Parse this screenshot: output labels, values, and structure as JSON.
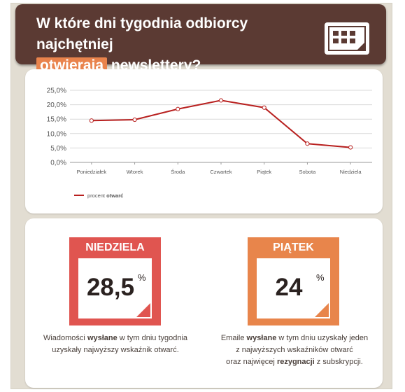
{
  "header": {
    "title_line1": "W które dni tygodnia odbiorcy najchętniej",
    "title_highlight": "otwierają",
    "title_rest": "newslettery?",
    "icon": "calendar-icon"
  },
  "chart_data": {
    "type": "line",
    "categories": [
      "Poniedziałek",
      "Wtorek",
      "Środa",
      "Czwartek",
      "Piątek",
      "Sobota",
      "Niedziela"
    ],
    "series": [
      {
        "name": "procent otwarć",
        "values": [
          14.5,
          14.8,
          18.5,
          21.5,
          19.0,
          6.5,
          5.2
        ],
        "color": "#b8201f"
      }
    ],
    "yticks": [
      "0,0%",
      "5,0%",
      "10,0%",
      "15,0%",
      "20,0%",
      "25,0%"
    ],
    "ylim": [
      0,
      25
    ],
    "grid": true,
    "legend": {
      "prefix": "procent",
      "bold": "otwarć",
      "placement": "bottom-left"
    }
  },
  "stats": [
    {
      "title": "NIEDZIELA",
      "value": "28,5",
      "unit": "%",
      "color": "#e05550",
      "caption": [
        {
          "pre": "Wiadomości ",
          "bold": "wysłane",
          "post": " w tym dniu tygodnia"
        },
        {
          "pre": "uzyskały najwyższy wskaźnik otwarć.",
          "bold": "",
          "post": ""
        }
      ]
    },
    {
      "title": "PIĄTEK",
      "value": "24",
      "unit": "%",
      "color": "#e8854b",
      "caption": [
        {
          "pre": "Emaile ",
          "bold": "wysłane",
          "post": " w tym dniu uzyskały jeden"
        },
        {
          "pre": "z najwyższych wskaźników otwarć",
          "bold": "",
          "post": ""
        },
        {
          "pre": "oraz najwięcej ",
          "bold": "rezygnacji",
          "post": " z subskrypcji."
        }
      ]
    }
  ]
}
